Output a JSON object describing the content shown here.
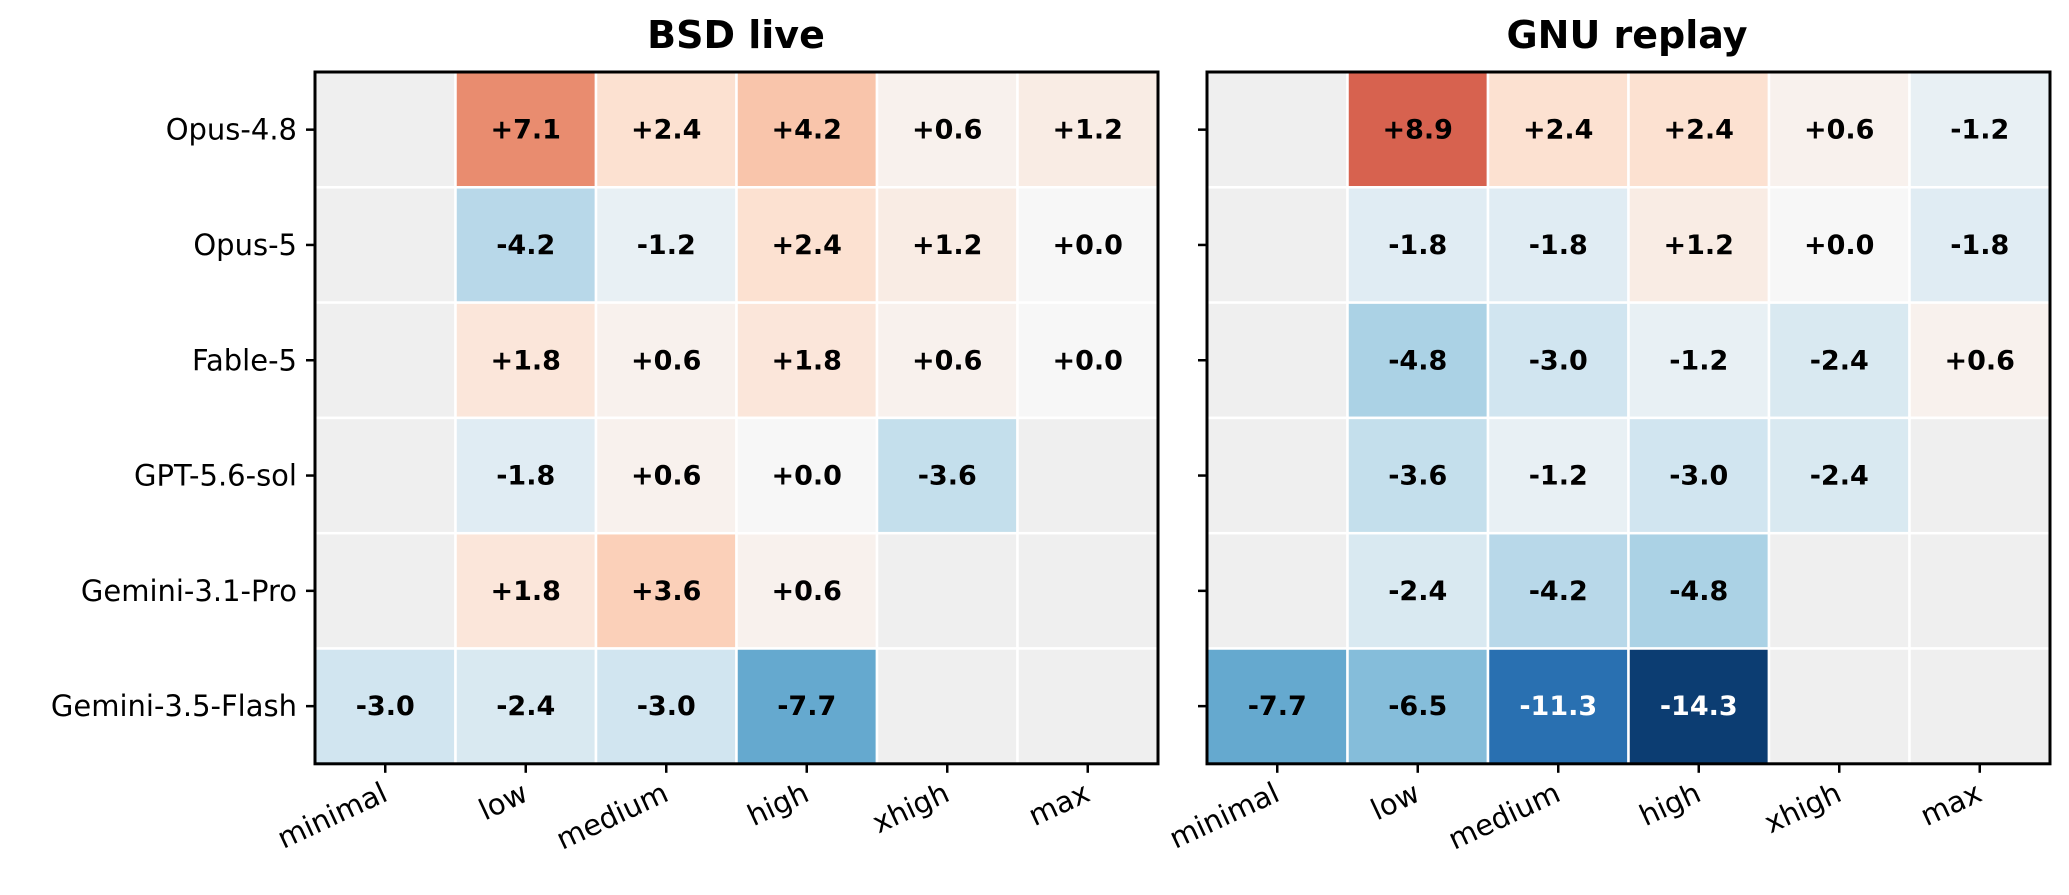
{
  "chart_data": [
    {
      "type": "heatmap",
      "title": "BSD live",
      "rows": [
        "Opus-4.8",
        "Opus-5",
        "Fable-5",
        "GPT-5.6-sol",
        "Gemini-3.1-Pro",
        "Gemini-3.5-Flash"
      ],
      "columns": [
        "minimal",
        "low",
        "medium",
        "high",
        "xhigh",
        "max"
      ],
      "values": [
        [
          null,
          7.1,
          2.4,
          4.2,
          0.6,
          1.2
        ],
        [
          null,
          -4.2,
          -1.2,
          2.4,
          1.2,
          0.0
        ],
        [
          null,
          1.8,
          0.6,
          1.8,
          0.6,
          0.0
        ],
        [
          null,
          -1.8,
          0.6,
          0.0,
          -3.6,
          null
        ],
        [
          null,
          1.8,
          3.6,
          0.6,
          null,
          null
        ],
        [
          -3.0,
          -2.4,
          -3.0,
          -7.7,
          null,
          null
        ]
      ],
      "labels": [
        [
          "",
          "+7.1",
          "+2.4",
          "+4.2",
          "+0.6",
          "+1.2"
        ],
        [
          "",
          "-4.2",
          "-1.2",
          "+2.4",
          "+1.2",
          "+0.0"
        ],
        [
          "",
          "+1.8",
          "+0.6",
          "+1.8",
          "+0.6",
          "+0.0"
        ],
        [
          "",
          "-1.8",
          "+0.6",
          "+0.0",
          "-3.6",
          ""
        ],
        [
          "",
          "+1.8",
          "+3.6",
          "+0.6",
          "",
          ""
        ],
        [
          "-3.0",
          "-2.4",
          "-3.0",
          "-7.7",
          "",
          ""
        ]
      ],
      "colormap": "RdBu_r",
      "color_range": [
        -15,
        15
      ],
      "missing_color": "#efefef"
    },
    {
      "type": "heatmap",
      "title": "GNU replay",
      "rows": [
        "Opus-4.8",
        "Opus-5",
        "Fable-5",
        "GPT-5.6-sol",
        "Gemini-3.1-Pro",
        "Gemini-3.5-Flash"
      ],
      "columns": [
        "minimal",
        "low",
        "medium",
        "high",
        "xhigh",
        "max"
      ],
      "values": [
        [
          null,
          8.9,
          2.4,
          2.4,
          0.6,
          -1.2
        ],
        [
          null,
          -1.8,
          -1.8,
          1.2,
          0.0,
          -1.8
        ],
        [
          null,
          -4.8,
          -3.0,
          -1.2,
          -2.4,
          0.6
        ],
        [
          null,
          -3.6,
          -1.2,
          -3.0,
          -2.4,
          null
        ],
        [
          null,
          -2.4,
          -4.2,
          -4.8,
          null,
          null
        ],
        [
          -7.7,
          -6.5,
          -11.3,
          -14.3,
          null,
          null
        ]
      ],
      "labels": [
        [
          "",
          "+8.9",
          "+2.4",
          "+2.4",
          "+0.6",
          "-1.2"
        ],
        [
          "",
          "-1.8",
          "-1.8",
          "+1.2",
          "+0.0",
          "-1.8"
        ],
        [
          "",
          "-4.8",
          "-3.0",
          "-1.2",
          "-2.4",
          "+0.6"
        ],
        [
          "",
          "-3.6",
          "-1.2",
          "-3.0",
          "-2.4",
          ""
        ],
        [
          "",
          "-2.4",
          "-4.2",
          "-4.8",
          "",
          ""
        ],
        [
          "-7.7",
          "-6.5",
          "-11.3",
          "-14.3",
          "",
          ""
        ]
      ],
      "colormap": "RdBu_r",
      "color_range": [
        -15,
        15
      ],
      "missing_color": "#efefef"
    }
  ]
}
